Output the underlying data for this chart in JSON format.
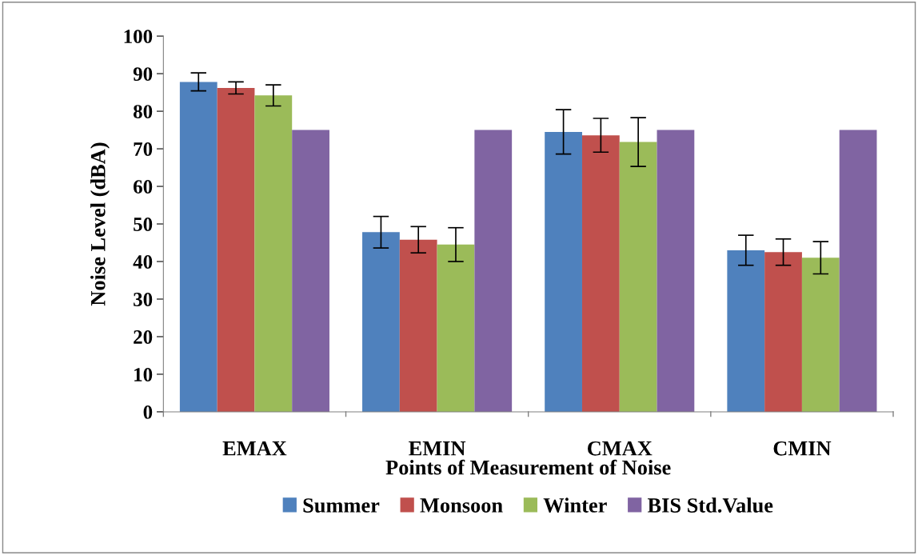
{
  "chart_data": {
    "type": "bar",
    "xlabel": "Points of Measurement of Noise",
    "ylabel": "Noise Level (dBA)",
    "categories": [
      "EMAX",
      "EMIN",
      "CMAX",
      "CMIN"
    ],
    "series": [
      {
        "name": "Summer",
        "color": "#4f81bd",
        "values": [
          87.8,
          47.8,
          74.5,
          43
        ],
        "errors": [
          2.4,
          4.2,
          5.9,
          4
        ]
      },
      {
        "name": "Monsoon",
        "color": "#c0504d",
        "values": [
          86.2,
          45.8,
          73.6,
          42.5
        ],
        "errors": [
          1.6,
          3.5,
          4.5,
          3.5
        ]
      },
      {
        "name": "Winter",
        "color": "#9bbb59",
        "values": [
          84.2,
          44.5,
          71.8,
          41
        ],
        "errors": [
          2.8,
          4.5,
          6.5,
          4.3
        ]
      },
      {
        "name": "BIS Std.Value",
        "color": "#8064a2",
        "values": [
          75,
          75,
          75,
          75
        ]
      }
    ],
    "ylim": [
      0,
      100
    ],
    "yticks": [
      0,
      10,
      20,
      30,
      40,
      50,
      60,
      70,
      80,
      90,
      100
    ],
    "grid": false,
    "legend": "bottom"
  }
}
